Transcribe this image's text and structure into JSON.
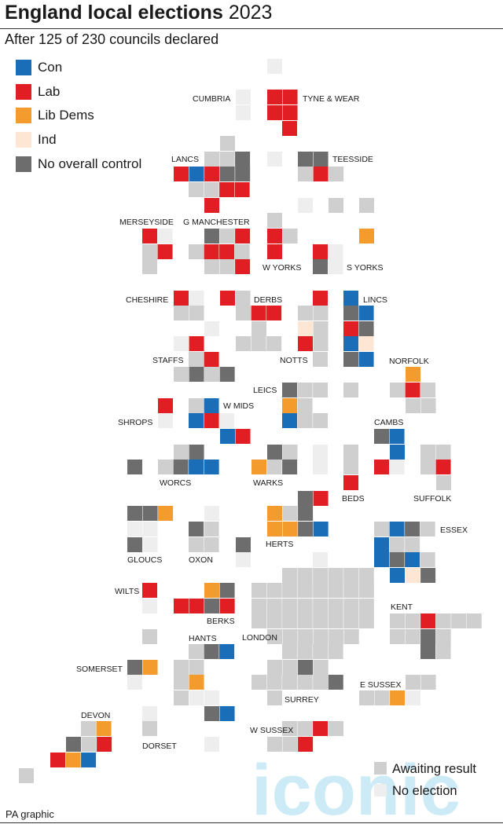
{
  "title": {
    "bold": "England local elections",
    "year": "2023"
  },
  "subtitle": "After 125 of 230 councils declared",
  "colors": {
    "con": "#1a6eb8",
    "lab": "#e01e24",
    "ld": "#f39b2d",
    "ind": "#fde7d4",
    "noc": "#6d6d6d",
    "awaiting": "#cfcfcf",
    "none": "#eeeeee"
  },
  "legend": [
    {
      "key": "con",
      "label": "Con"
    },
    {
      "key": "lab",
      "label": "Lab"
    },
    {
      "key": "ld",
      "label": "Lib Dems"
    },
    {
      "key": "ind",
      "label": "Ind"
    },
    {
      "key": "noc",
      "label": "No overall control"
    }
  ],
  "key2": [
    {
      "key": "awaiting",
      "label": "Awaiting result"
    },
    {
      "key": "none",
      "label": "No election"
    }
  ],
  "labels": [
    "CUMBRIA",
    "TYNE & WEAR",
    "LANCS",
    "TEESSIDE",
    "MERSEYSIDE",
    "G MANCHESTER",
    "W YORKS",
    "S YORKS",
    "CHESHIRE",
    "DERBS",
    "LINCS",
    "STAFFS",
    "NOTTS",
    "NORFOLK",
    "LEICS",
    "W MIDS",
    "SHROPS",
    "CAMBS",
    "WORCS",
    "WARKS",
    "BEDS",
    "SUFFOLK",
    "ESSEX",
    "GLOUCS",
    "OXON",
    "HERTS",
    "WILTS",
    "BERKS",
    "KENT",
    "LONDON",
    "HANTS",
    "SOMERSET",
    "E SUSSEX",
    "SURREY",
    "DEVON",
    "W SUSSEX",
    "DORSET"
  ],
  "credit": "PA graphic",
  "watermark": "iconic"
}
